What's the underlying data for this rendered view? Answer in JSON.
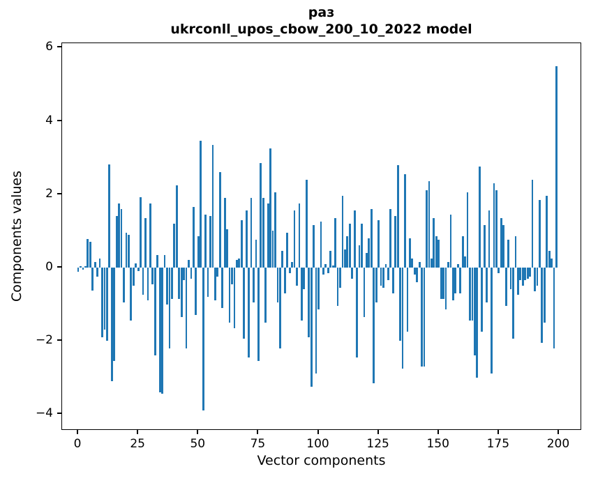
{
  "chart_data": {
    "type": "bar",
    "title": "раз",
    "subtitle": "ukrconll_upos_cbow_200_10_2022 model",
    "xlabel": "Vector components",
    "ylabel": "Components values",
    "bar_color": "#1f77b4",
    "background": "#ffffff",
    "grid": false,
    "legend": null,
    "xlim": [
      -6.7,
      209.6
    ],
    "ylim": [
      -4.45,
      6.12
    ],
    "xticks": [
      {
        "v": 0,
        "label": "0"
      },
      {
        "v": 25,
        "label": "25"
      },
      {
        "v": 50,
        "label": "50"
      },
      {
        "v": 75,
        "label": "75"
      },
      {
        "v": 100,
        "label": "100"
      },
      {
        "v": 125,
        "label": "125"
      },
      {
        "v": 150,
        "label": "150"
      },
      {
        "v": 175,
        "label": "175"
      },
      {
        "v": 200,
        "label": "200"
      }
    ],
    "yticks": [
      {
        "v": 6,
        "label": "6"
      },
      {
        "v": 4,
        "label": "4"
      },
      {
        "v": 2,
        "label": "2"
      },
      {
        "v": 0,
        "label": "0"
      },
      {
        "v": -2,
        "label": "−2"
      },
      {
        "v": -4,
        "label": "−4"
      }
    ],
    "values": [
      -0.12,
      0.04,
      -0.05,
      0.03,
      0.78,
      0.7,
      -0.62,
      0.16,
      -0.25,
      0.25,
      -1.9,
      -1.7,
      -2.0,
      2.82,
      -3.1,
      -2.55,
      1.4,
      1.75,
      1.6,
      -0.95,
      0.95,
      0.9,
      -1.45,
      -0.5,
      0.12,
      -0.1,
      1.92,
      -0.75,
      1.35,
      -0.9,
      1.75,
      -0.45,
      -2.4,
      0.35,
      -3.4,
      -3.45,
      0.35,
      -1.0,
      -2.2,
      -0.85,
      1.2,
      2.25,
      -0.85,
      -1.35,
      -0.35,
      -2.2,
      0.2,
      -0.3,
      1.65,
      -1.3,
      0.85,
      3.45,
      -3.9,
      1.45,
      -0.8,
      1.4,
      3.35,
      -0.9,
      -0.25,
      2.6,
      -1.1,
      1.9,
      1.05,
      -1.5,
      -0.45,
      -1.65,
      0.2,
      0.25,
      1.3,
      -1.95,
      1.55,
      -2.45,
      1.9,
      -0.95,
      0.75,
      -2.55,
      2.85,
      1.9,
      -1.5,
      1.75,
      3.25,
      1.0,
      2.05,
      -0.95,
      -2.2,
      0.45,
      -0.7,
      0.95,
      -0.15,
      0.15,
      1.55,
      -0.5,
      1.75,
      -1.45,
      -0.6,
      2.4,
      -1.9,
      -3.25,
      1.15,
      -2.9,
      -1.15,
      1.25,
      -0.2,
      0.1,
      -0.15,
      0.45,
      0.05,
      1.35,
      -1.05,
      -0.55,
      1.95,
      0.5,
      0.85,
      1.2,
      -0.3,
      1.55,
      -2.45,
      0.6,
      1.2,
      -1.35,
      0.4,
      0.8,
      1.6,
      -3.15,
      -0.95,
      1.3,
      -0.5,
      -0.55,
      0.1,
      -0.35,
      1.6,
      -0.7,
      1.4,
      2.8,
      -2.0,
      -2.75,
      2.55,
      -1.75,
      0.8,
      0.25,
      -0.2,
      -0.4,
      0.15,
      -2.7,
      -2.7,
      2.1,
      2.35,
      0.25,
      1.35,
      0.85,
      0.75,
      -0.85,
      -0.85,
      -1.15,
      0.15,
      1.45,
      -0.9,
      -0.7,
      0.1,
      -0.7,
      0.85,
      0.3,
      2.05,
      -1.45,
      -1.45,
      -2.4,
      -3.0,
      2.75,
      -1.75,
      1.15,
      -0.95,
      1.55,
      -2.9,
      2.3,
      2.1,
      -0.15,
      1.35,
      1.15,
      -1.05,
      0.75,
      -0.6,
      -1.95,
      0.85,
      -0.75,
      -0.35,
      -0.5,
      -0.35,
      -0.3,
      -0.25,
      2.4,
      -0.65,
      -0.5,
      1.85,
      -2.05,
      -1.5,
      1.95,
      0.45,
      0.25,
      -2.2,
      5.5
    ]
  }
}
